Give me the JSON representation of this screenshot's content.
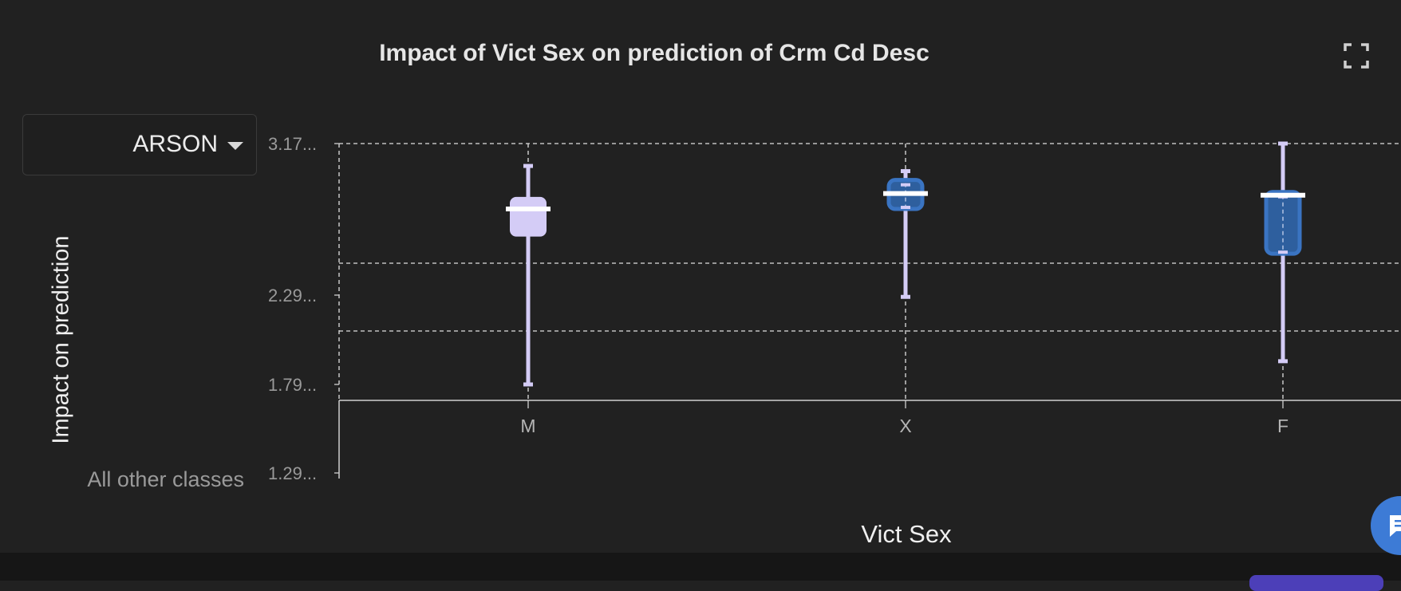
{
  "header": {
    "title": "Impact of Vict Sex on prediction of Crm Cd Desc",
    "expand_icon": "fullscreen-icon"
  },
  "class_selector": {
    "selected": "ARSON",
    "caret_icon": "caret-down-icon"
  },
  "other_classes_label": "All other classes",
  "chat_icon": "chat-icon",
  "colors": {
    "background": "#212121",
    "whisker": "#d4ccf6",
    "box_light": "#d4ccf6",
    "box_blue": "#3a74c2",
    "median": "#ffffff",
    "grid": "#e0e0e0"
  },
  "chart_data": {
    "type": "boxplot",
    "title": "Impact of Vict Sex on prediction of Crm Cd Desc",
    "xlabel": "Vict Sex",
    "ylabel": "Impact on prediction",
    "categories": [
      "M",
      "X",
      "F"
    ],
    "y_ticks": [
      {
        "label": "3.17...",
        "value": 3.17
      },
      {
        "label": "2.29...",
        "value": 2.29
      },
      {
        "label": "1.79...",
        "value": 1.79
      },
      {
        "label": "1.29...",
        "value": 1.29
      }
    ],
    "ylim": [
      1.29,
      3.17
    ],
    "grid": true,
    "series": [
      {
        "category": "M",
        "min": 1.79,
        "q1": 2.63,
        "median": 2.79,
        "q3": 2.86,
        "max": 3.04,
        "style": "light"
      },
      {
        "category": "X",
        "min": 2.28,
        "q1": 2.79,
        "median": 2.88,
        "q3": 2.94,
        "max": 3.01,
        "style": "blue"
      },
      {
        "category": "F",
        "min": 1.92,
        "q1": 2.53,
        "median": 2.87,
        "q3": 2.87,
        "max": 3.17,
        "style": "blue"
      }
    ]
  }
}
